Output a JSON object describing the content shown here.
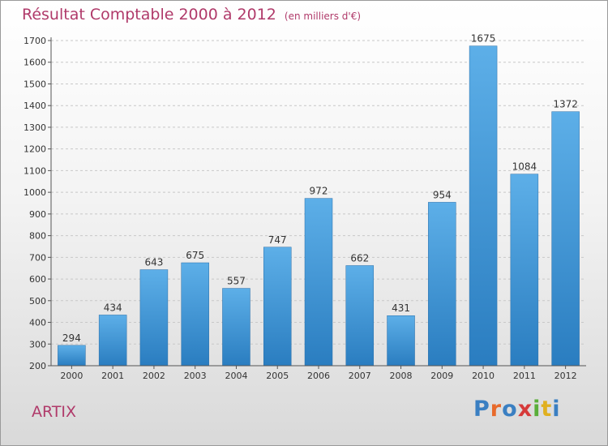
{
  "header": {
    "title": "Résultat Comptable 2000 à 2012",
    "subtitle": "(en milliers d'€)"
  },
  "footer": {
    "town": "ARTIX",
    "logo_letters": [
      "P",
      "r",
      "o",
      "x",
      "i",
      "t",
      "i"
    ],
    "logo_colors": [
      "#3a7fc2",
      "#e86a2b",
      "#3a7fc2",
      "#d63a3a",
      "#5aae3a",
      "#e0b020",
      "#3a7fc2"
    ]
  },
  "colors": {
    "bar_light": "#5dafe8",
    "bar_dark": "#2a7dc0",
    "title": "#b03a6a"
  },
  "chart_data": {
    "type": "bar",
    "title": "Résultat Comptable 2000 à 2012",
    "subtitle": "(en milliers d'€)",
    "categories": [
      "2000",
      "2001",
      "2002",
      "2003",
      "2004",
      "2005",
      "2006",
      "2007",
      "2008",
      "2009",
      "2010",
      "2011",
      "2012"
    ],
    "values": [
      294,
      434,
      643,
      675,
      557,
      747,
      972,
      662,
      431,
      954,
      1675,
      1084,
      1372
    ],
    "ylim": [
      200,
      1700
    ],
    "yticks": [
      200,
      300,
      400,
      500,
      600,
      700,
      800,
      900,
      1000,
      1100,
      1200,
      1300,
      1400,
      1500,
      1600,
      1700
    ],
    "grid": "horizontal-dashed",
    "data_labels": true
  }
}
